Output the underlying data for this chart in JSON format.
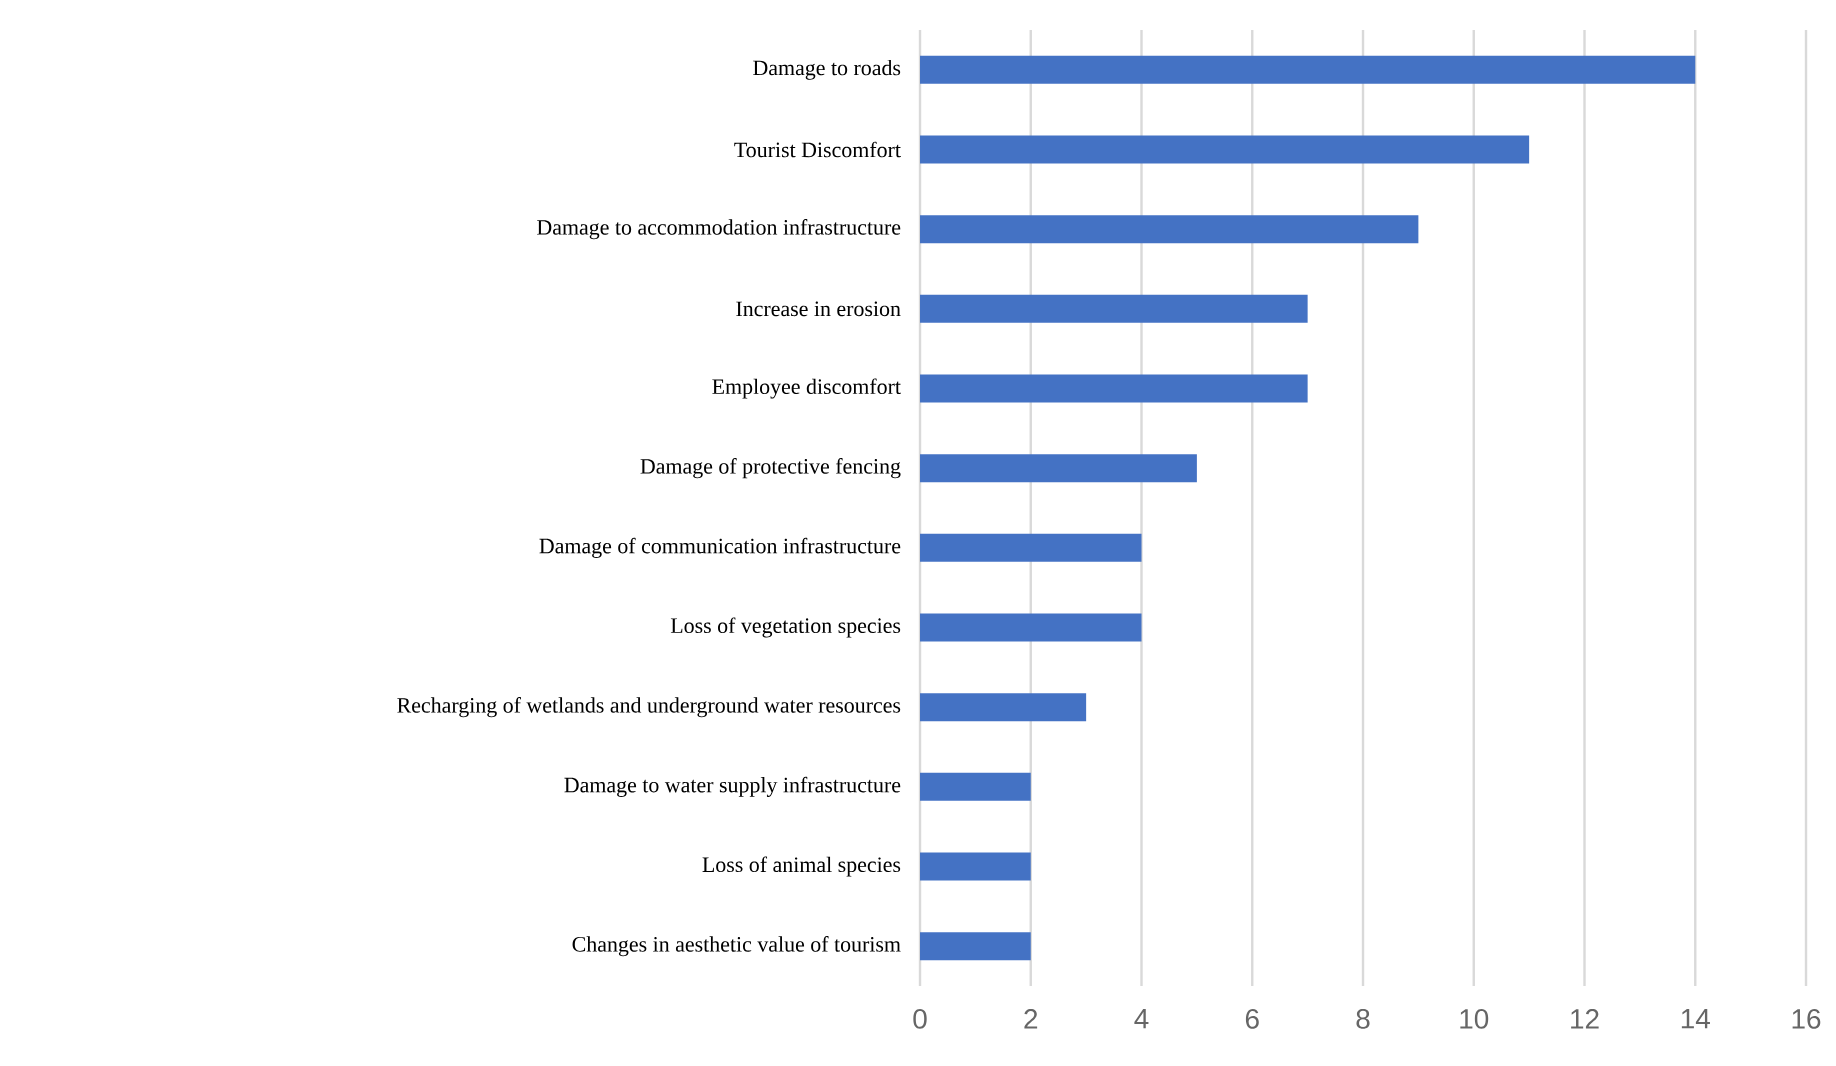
{
  "chart_data": {
    "type": "bar",
    "orientation": "horizontal",
    "categories": [
      "Damage to roads",
      "Tourist Discomfort",
      "Damage to accommodation infrastructure",
      "Increase in erosion",
      "Employee discomfort",
      "Damage of protective fencing",
      "Damage of communication infrastructure",
      "Loss of vegetation species",
      "Recharging of wetlands and underground water resources",
      "Damage to water supply infrastructure",
      "Loss of animal species",
      "Changes in aesthetic value of tourism"
    ],
    "values": [
      14,
      11,
      9,
      7,
      7,
      5,
      4,
      4,
      3,
      2,
      2,
      2
    ],
    "color": "#4472c4",
    "xlim": [
      0,
      16
    ],
    "xticks": [
      0,
      2,
      4,
      6,
      8,
      10,
      12,
      14,
      16
    ],
    "grid": "x"
  }
}
